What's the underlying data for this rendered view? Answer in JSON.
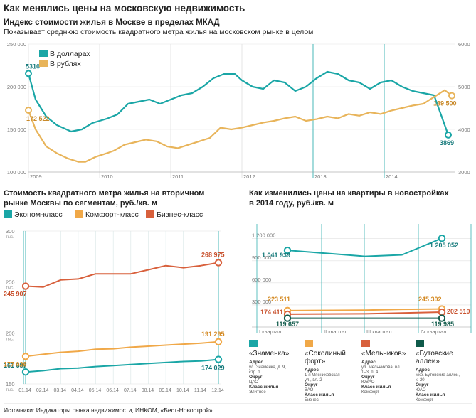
{
  "title": "Как менялись цены на московскую недвижимость",
  "source": "Источники: Индикаторы рынка недвижимости, ИНКОМ, «Бест-Новострой»",
  "colors": {
    "usd": "#1aa6a6",
    "rub": "#e8b45a",
    "econom": "#1aa6a6",
    "comfort": "#f0a848",
    "business": "#d8603c",
    "znamenka": "#1aa6a6",
    "sokolniy": "#f0a848",
    "melnikov": "#d8603c",
    "butovo": "#0f5a4a"
  },
  "chart_data": [
    {
      "type": "line",
      "title": "Индекс стоимости жилья в Москве в пределах МКАД",
      "subtitle": "Показывает среднюю стоимость квадратного метра жилья на московском рынке в целом",
      "left_ticks": [
        "250 000",
        "200 000",
        "150 000",
        "100 000"
      ],
      "right_ticks": [
        "6000",
        "5000",
        "4000",
        "3000"
      ],
      "x_labels": [
        "2009",
        "2010",
        "2011",
        "2012",
        "2013",
        "2014"
      ],
      "ylim_left": [
        100000,
        250000
      ],
      "ylim_right": [
        3000,
        6000
      ],
      "xlim": [
        2009.0,
        2015.0
      ],
      "grid": true,
      "legend": "top-left",
      "series": [
        {
          "name": "В долларах",
          "axis": "right",
          "x": [
            2009.0,
            2009.1,
            2009.25,
            2009.4,
            2009.6,
            2009.75,
            2009.9,
            2010.1,
            2010.25,
            2010.4,
            2010.55,
            2010.7,
            2010.85,
            2011.0,
            2011.15,
            2011.3,
            2011.45,
            2011.6,
            2011.75,
            2011.9,
            2012.0,
            2012.15,
            2012.3,
            2012.45,
            2012.6,
            2012.75,
            2012.9,
            2013.05,
            2013.2,
            2013.35,
            2013.5,
            2013.65,
            2013.8,
            2013.95,
            2014.1,
            2014.25,
            2014.4,
            2014.55,
            2014.7,
            2014.9
          ],
          "values": [
            5310,
            4700,
            4300,
            4100,
            3950,
            4000,
            4150,
            4250,
            4350,
            4600,
            4650,
            4700,
            4600,
            4700,
            4800,
            4850,
            5000,
            5200,
            5300,
            5300,
            5150,
            5000,
            4950,
            5150,
            5100,
            4900,
            5000,
            5200,
            5350,
            5300,
            5150,
            5100,
            4950,
            5100,
            5150,
            5000,
            4900,
            4850,
            4800,
            3869
          ],
          "start_label": "5310",
          "end_label": "3869"
        },
        {
          "name": "В рублях",
          "axis": "left",
          "x": [
            2009.0,
            2009.1,
            2009.25,
            2009.4,
            2009.55,
            2009.7,
            2009.8,
            2009.95,
            2010.1,
            2010.2,
            2010.35,
            2010.5,
            2010.65,
            2010.8,
            2010.95,
            2011.1,
            2011.25,
            2011.4,
            2011.55,
            2011.7,
            2011.85,
            2012.0,
            2012.15,
            2012.3,
            2012.45,
            2012.6,
            2012.75,
            2012.9,
            2013.05,
            2013.2,
            2013.35,
            2013.5,
            2013.65,
            2013.8,
            2013.95,
            2014.1,
            2014.25,
            2014.4,
            2014.55,
            2014.7,
            2014.85,
            2014.95
          ],
          "values": [
            172522,
            150000,
            130000,
            122000,
            116000,
            112000,
            112000,
            118000,
            122000,
            125000,
            132000,
            135000,
            138000,
            136000,
            130000,
            128000,
            132000,
            136000,
            140000,
            152000,
            150000,
            152000,
            155000,
            158000,
            160000,
            163000,
            165000,
            160000,
            162000,
            165000,
            163000,
            168000,
            166000,
            170000,
            168000,
            172000,
            175000,
            178000,
            180000,
            188000,
            196000,
            189500
          ],
          "start_label": "172 522",
          "end_label": "189 500"
        }
      ]
    },
    {
      "type": "line",
      "title_lines": [
        "Стоимость квадратного метра жилья на вторичном",
        "рынке Москвы по сегментам, руб./кв. м"
      ],
      "y_ticks": [
        "300",
        "250",
        "200",
        "150"
      ],
      "y_unit": "тыс.",
      "ylim": [
        150,
        300
      ],
      "categories": [
        "01.14",
        "02.14",
        "03.14",
        "04.14",
        "05.14",
        "06.14",
        "07.14",
        "08.14",
        "09.14",
        "10.14",
        "11.14",
        "12.14"
      ],
      "legend": "top",
      "series": [
        {
          "name": "Эконом-класс",
          "values": [
            161.687,
            163,
            165,
            165.5,
            167,
            168,
            169,
            170,
            171,
            172,
            172.5,
            174.029
          ],
          "start_label": "161 687",
          "end_label": "174 029"
        },
        {
          "name": "Комфорт-класс",
          "values": [
            177.026,
            179,
            181,
            182,
            184,
            184.5,
            186,
            187,
            188,
            189,
            190,
            191.295
          ],
          "start_label": "177 026",
          "end_label": "191 295"
        },
        {
          "name": "Бизнес-класс",
          "values": [
            245.907,
            245,
            252,
            253,
            258,
            258,
            258,
            262,
            266,
            264,
            266,
            268.975
          ],
          "start_label": "245 907",
          "end_label": "268 975"
        }
      ]
    },
    {
      "type": "line",
      "title_lines": [
        "Как изменились цены на квартиры в новостройках",
        "в 2014 году, руб./кв. м"
      ],
      "y_ticks": [
        "1 200 000",
        "900 000",
        "600 000",
        "300 000"
      ],
      "ylim": [
        0,
        1400000
      ],
      "categories": [
        "I квартал",
        "II квартал",
        "III квартал",
        "IV квартал"
      ],
      "series": [
        {
          "name": "«Знаменка»",
          "values": [
            1041939,
            960000,
            980000,
            1205052
          ],
          "start_label": "1 041 939",
          "end_label": "1 205 052"
        },
        {
          "name": "«Соколиный форт»",
          "values": [
            223511,
            230000,
            240000,
            245302
          ],
          "start_label": "223 511",
          "end_label": "245 302"
        },
        {
          "name": "«Мельников»",
          "values": [
            174411,
            180000,
            190000,
            202510
          ],
          "start_label": "174 411",
          "end_label": "202 510"
        },
        {
          "name": "«Бутовские аллеи»",
          "values": [
            119657,
            119800,
            119900,
            119985
          ],
          "start_label": "119 657",
          "end_label": "119 985"
        }
      ]
    }
  ],
  "legend_new": [
    {
      "name_lines": [
        "«Знаменка»"
      ],
      "color_key": "znamenka",
      "details": [
        "Адрес",
        "ул. Знаменка, д. 9,",
        "стр. 1",
        "Округ",
        "ЦАО",
        "Класс жилья",
        "Элитное"
      ]
    },
    {
      "name_lines": [
        "«Соколиный",
        "форт»"
      ],
      "color_key": "sokolniy",
      "details": [
        "Адрес",
        "1-я Мясниковская",
        "ул., вл. 2",
        "Округ",
        "ВАО",
        "Класс жилья",
        "Бизнес"
      ]
    },
    {
      "name_lines": [
        "«Мельников»"
      ],
      "color_key": "melnikov",
      "details": [
        "Адрес",
        "ул. Мельникова, вл.",
        "1–3, п. 4",
        "Округ",
        "ЮВАО",
        "Класс жилья",
        "Комфорт"
      ]
    },
    {
      "name_lines": [
        "«Бутовские",
        "аллеи»"
      ],
      "color_key": "butovo",
      "details": [
        "Адрес",
        "мкр. Бутовские аллеи,",
        "к. 20",
        "Округ",
        "ЮАО",
        "Класс жилья",
        "Комфорт"
      ]
    }
  ]
}
